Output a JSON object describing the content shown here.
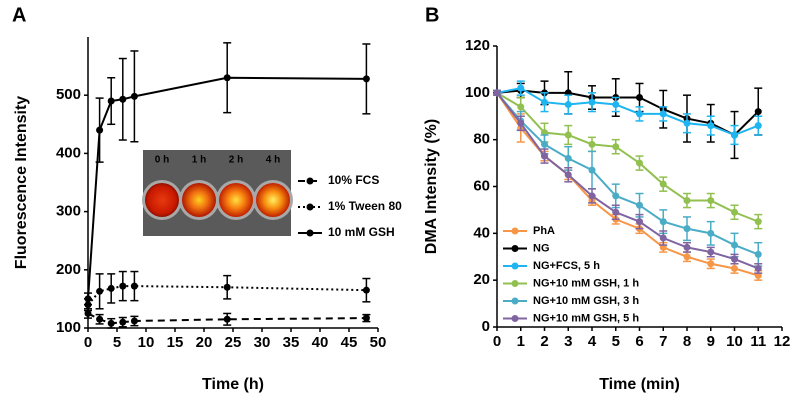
{
  "chart_data": [
    {
      "type": "line",
      "panel_label": "A",
      "x_label": "Time (h)",
      "y_label": "Fluorescence Intensity",
      "x": [
        0,
        2,
        4,
        6,
        8,
        24,
        48
      ],
      "xlim": [
        0,
        50
      ],
      "xticks": [
        0,
        5,
        10,
        15,
        20,
        25,
        30,
        35,
        40,
        45,
        50
      ],
      "ylim": [
        100,
        600
      ],
      "yticks": [
        100,
        200,
        300,
        400,
        500
      ],
      "legend": "right",
      "inset_labels": [
        "0 h",
        "1 h",
        "2 h",
        "4 h"
      ],
      "series": [
        {
          "name": "10% FCS",
          "color": "#000000",
          "line_style": "dashed",
          "values": [
            125,
            115,
            108,
            110,
            112,
            115,
            117
          ],
          "errors": [
            8,
            8,
            8,
            8,
            8,
            10,
            6
          ]
        },
        {
          "name": "1% Tween 80",
          "color": "#000000",
          "line_style": "dotted",
          "values": [
            140,
            163,
            168,
            172,
            172,
            170,
            165
          ],
          "errors": [
            10,
            30,
            25,
            25,
            25,
            20,
            20
          ]
        },
        {
          "name": "10 mM GSH",
          "color": "#000000",
          "line_style": "solid",
          "values": [
            150,
            440,
            490,
            493,
            498,
            530,
            528
          ],
          "errors": [
            10,
            55,
            40,
            70,
            78,
            60,
            60
          ]
        }
      ]
    },
    {
      "type": "line",
      "panel_label": "B",
      "x_label": "Time (min)",
      "y_label": "DMA Intensity (%)",
      "x": [
        0,
        1,
        2,
        3,
        4,
        5,
        6,
        7,
        8,
        9,
        10,
        11
      ],
      "xlim": [
        0,
        12
      ],
      "xticks": [
        0,
        1,
        2,
        3,
        4,
        5,
        6,
        7,
        8,
        9,
        10,
        11,
        12
      ],
      "ylim": [
        0,
        120
      ],
      "yticks": [
        0,
        20,
        40,
        60,
        80,
        100,
        120
      ],
      "legend": "lower left",
      "series": [
        {
          "name": "PhA",
          "color": "#f79646",
          "line_style": "solid",
          "values": [
            100,
            85,
            73,
            65,
            54,
            46,
            42,
            34,
            30,
            27,
            25,
            22
          ],
          "errors": [
            1,
            6,
            2,
            2,
            2,
            2,
            2,
            2,
            2,
            2,
            2,
            2
          ]
        },
        {
          "name": "NG",
          "color": "#000000",
          "line_style": "solid",
          "values": [
            100,
            101,
            100,
            100,
            98,
            98,
            98,
            93,
            89,
            87,
            82,
            92
          ],
          "errors": [
            1,
            3,
            5,
            9,
            5,
            8,
            6,
            8,
            10,
            8,
            10,
            10
          ]
        },
        {
          "name": "NG+FCS, 5 h",
          "color": "#1fb5f0",
          "line_style": "solid",
          "values": [
            100,
            102,
            96,
            95,
            96,
            95,
            91,
            91,
            87,
            86,
            82,
            86
          ],
          "errors": [
            1,
            3,
            4,
            4,
            4,
            3,
            3,
            3,
            4,
            4,
            4,
            4
          ]
        },
        {
          "name": "NG+10 mM GSH, 1 h",
          "color": "#92c050",
          "line_style": "solid",
          "values": [
            100,
            94,
            83,
            82,
            78,
            77,
            70,
            61,
            54,
            54,
            49,
            45
          ],
          "errors": [
            1,
            4,
            4,
            4,
            3,
            3,
            3,
            3,
            3,
            3,
            3,
            3
          ]
        },
        {
          "name": "NG+10 mM GSH, 3 h",
          "color": "#4bacc6",
          "line_style": "solid",
          "values": [
            100,
            88,
            78,
            72,
            67,
            56,
            52,
            45,
            42,
            40,
            35,
            31
          ],
          "errors": [
            1,
            4,
            4,
            5,
            8,
            5,
            5,
            5,
            5,
            5,
            5,
            5
          ]
        },
        {
          "name": "NG+10 mM GSH, 5 h",
          "color": "#8064a2",
          "line_style": "solid",
          "values": [
            100,
            87,
            73,
            65,
            56,
            49,
            45,
            38,
            34,
            32,
            29,
            25
          ],
          "errors": [
            1,
            3,
            3,
            3,
            3,
            3,
            3,
            3,
            2,
            2,
            2,
            2
          ]
        }
      ]
    }
  ]
}
